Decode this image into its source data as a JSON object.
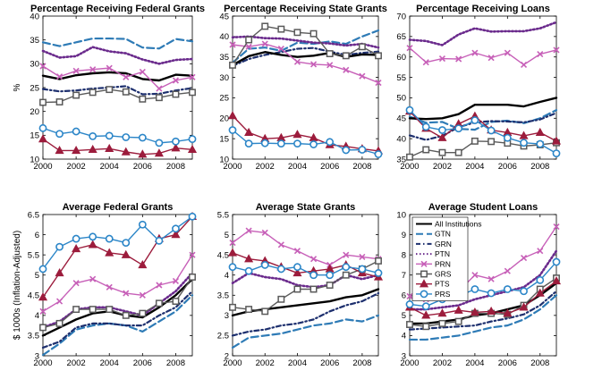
{
  "style": {
    "colors": {
      "ALL": "#000000",
      "GTN": "#2e7bb6",
      "GRN": "#1d2f6e",
      "PTN": "#6a2a8c",
      "PRN": "#c760b8",
      "GRS": "#5a5a5a",
      "PTS": "#9c1c3c",
      "PRS": "#2c86c8"
    }
  },
  "chart_data": [
    {
      "type": "line",
      "title": "Percentage Receiving Federal Grants",
      "xlabel": "",
      "ylabel": "%",
      "xlim": [
        2000,
        2009
      ],
      "ylim": [
        10,
        40
      ],
      "xticks": [
        2000,
        2002,
        2004,
        2006,
        2008
      ],
      "yticks": [
        10,
        15,
        20,
        25,
        30,
        35,
        40
      ],
      "x": [
        2000,
        2001,
        2002,
        2003,
        2004,
        2005,
        2006,
        2007,
        2008,
        2009
      ],
      "series": [
        {
          "name": "All Institutions",
          "key": "ALL",
          "values": [
            27.5,
            26.8,
            27.6,
            28.0,
            28.2,
            28.0,
            26.8,
            26.5,
            27.7,
            27.5
          ]
        },
        {
          "name": "GTN",
          "key": "GTN",
          "values": [
            34.5,
            33.7,
            34.5,
            35.3,
            35.3,
            35.2,
            33.4,
            33.2,
            35.2,
            34.7
          ]
        },
        {
          "name": "GRN",
          "key": "GRN",
          "values": [
            24.7,
            24.2,
            24.4,
            24.8,
            25.0,
            25.3,
            23.6,
            23.7,
            24.4,
            24.9
          ]
        },
        {
          "name": "PTN",
          "key": "PTN",
          "values": [
            32.7,
            31.3,
            31.6,
            33.5,
            32.6,
            32.2,
            30.9,
            30.0,
            30.8,
            31.0
          ]
        },
        {
          "name": "PRN",
          "key": "PRN",
          "values": [
            29.5,
            27.3,
            28.5,
            28.8,
            29.1,
            27.2,
            28.3,
            24.8,
            26.5,
            27.2
          ]
        },
        {
          "name": "GRS",
          "key": "GRS",
          "values": [
            21.9,
            22.0,
            23.4,
            24.0,
            24.6,
            24.1,
            22.6,
            22.9,
            23.6,
            24.0
          ]
        },
        {
          "name": "PTS",
          "key": "PTS",
          "values": [
            14.2,
            11.8,
            11.8,
            12.0,
            12.2,
            11.5,
            11.0,
            11.2,
            12.3,
            12.0
          ]
        },
        {
          "name": "PRS",
          "key": "PRS",
          "values": [
            16.5,
            15.3,
            15.8,
            14.8,
            14.9,
            14.6,
            14.5,
            13.4,
            13.7,
            14.2
          ]
        }
      ]
    },
    {
      "type": "line",
      "title": "Percentage Receiving State Grants",
      "xlabel": "",
      "ylabel": "",
      "xlim": [
        2000,
        2009
      ],
      "ylim": [
        10,
        45
      ],
      "xticks": [
        2000,
        2002,
        2004,
        2006,
        2008
      ],
      "yticks": [
        10,
        15,
        20,
        25,
        30,
        35,
        40,
        45
      ],
      "x": [
        2000,
        2001,
        2002,
        2003,
        2004,
        2005,
        2006,
        2007,
        2008,
        2009
      ],
      "series": [
        {
          "name": "All Institutions",
          "key": "ALL",
          "values": [
            33.0,
            35.2,
            36.2,
            35.5,
            35.0,
            35.3,
            36.0,
            35.0,
            35.6,
            35.5
          ]
        },
        {
          "name": "GTN",
          "key": "GTN",
          "values": [
            33.6,
            37.0,
            37.3,
            36.5,
            38.5,
            38.2,
            38.8,
            38.2,
            40.0,
            41.5
          ]
        },
        {
          "name": "GRN",
          "key": "GRN",
          "values": [
            32.8,
            34.5,
            35.5,
            36.2,
            37.0,
            37.2,
            36.3,
            35.5,
            36.0,
            36.3
          ]
        },
        {
          "name": "PTN",
          "key": "PTN",
          "values": [
            39.8,
            40.0,
            39.6,
            39.5,
            39.0,
            38.5,
            38.3,
            37.8,
            38.2,
            37.3
          ]
        },
        {
          "name": "PRN",
          "key": "PRN",
          "values": [
            38.0,
            37.5,
            38.2,
            37.0,
            33.8,
            33.2,
            33.0,
            31.8,
            30.3,
            28.7
          ]
        },
        {
          "name": "GRS",
          "key": "GRS",
          "values": [
            33.0,
            39.2,
            42.5,
            41.8,
            41.0,
            40.7,
            35.8,
            35.3,
            37.5,
            35.3
          ]
        },
        {
          "name": "PTS",
          "key": "PTS",
          "values": [
            20.6,
            16.5,
            15.0,
            15.2,
            16.0,
            15.2,
            13.5,
            13.1,
            12.5,
            12.0
          ]
        },
        {
          "name": "PRS",
          "key": "PRS",
          "values": [
            17.1,
            13.8,
            13.9,
            13.8,
            13.8,
            13.6,
            14.2,
            12.2,
            12.3,
            11.2
          ]
        }
      ]
    },
    {
      "type": "line",
      "title": "Percentage Receiving Loans",
      "xlabel": "",
      "ylabel": "",
      "xlim": [
        2000,
        2009
      ],
      "ylim": [
        35,
        70
      ],
      "xticks": [
        2000,
        2002,
        2004,
        2006,
        2008
      ],
      "yticks": [
        35,
        40,
        45,
        50,
        55,
        60,
        65,
        70
      ],
      "x": [
        2000,
        2001,
        2002,
        2003,
        2004,
        2005,
        2006,
        2007,
        2008,
        2009
      ],
      "series": [
        {
          "name": "All Institutions",
          "key": "ALL",
          "values": [
            45.0,
            44.8,
            45.0,
            46.0,
            48.3,
            48.3,
            48.3,
            47.9,
            49.0,
            50.0
          ]
        },
        {
          "name": "GTN",
          "key": "GTN",
          "values": [
            45.4,
            43.9,
            44.1,
            42.4,
            42.2,
            44.1,
            44.4,
            43.8,
            45.0,
            47.0
          ]
        },
        {
          "name": "GRN",
          "key": "GRN",
          "values": [
            40.8,
            39.7,
            40.7,
            42.8,
            44.0,
            44.3,
            44.2,
            44.0,
            44.7,
            46.3
          ]
        },
        {
          "name": "PTN",
          "key": "PTN",
          "values": [
            64.2,
            63.9,
            62.9,
            65.5,
            67.0,
            66.2,
            66.3,
            66.3,
            67.0,
            68.5
          ]
        },
        {
          "name": "PRN",
          "key": "PRN",
          "values": [
            62.2,
            58.7,
            59.6,
            59.5,
            61.0,
            59.8,
            61.0,
            58.1,
            60.7,
            61.7
          ]
        },
        {
          "name": "GRS",
          "key": "GRS",
          "values": [
            35.5,
            37.3,
            36.6,
            36.6,
            39.4,
            39.3,
            38.9,
            38.2,
            38.5,
            39.0
          ]
        },
        {
          "name": "PTS",
          "key": "PTS",
          "values": [
            46.7,
            42.5,
            40.2,
            43.6,
            45.5,
            42.1,
            41.5,
            40.7,
            41.5,
            39.4
          ]
        },
        {
          "name": "PRS",
          "key": "PRS",
          "values": [
            47.0,
            42.9,
            42.1,
            42.5,
            44.5,
            42.0,
            40.2,
            39.0,
            38.7,
            36.4
          ]
        }
      ]
    },
    {
      "type": "line",
      "title": "Average Federal Grants",
      "xlabel": "",
      "ylabel": "$ 1000s (Inflation-Adjusted)",
      "xlim": [
        2000,
        2009
      ],
      "ylim": [
        3,
        6.5
      ],
      "xticks": [
        2000,
        2002,
        2004,
        2006,
        2008
      ],
      "yticks": [
        3,
        3.5,
        4,
        4.5,
        5,
        5.5,
        6,
        6.5
      ],
      "x": [
        2000,
        2001,
        2002,
        2003,
        2004,
        2005,
        2006,
        2007,
        2008,
        2009
      ],
      "series": [
        {
          "name": "All Institutions",
          "key": "ALL",
          "values": [
            3.5,
            3.7,
            3.9,
            4.05,
            4.1,
            4.0,
            3.95,
            4.2,
            4.5,
            4.9
          ]
        },
        {
          "name": "GTN",
          "key": "GTN",
          "values": [
            3.02,
            3.3,
            3.65,
            3.75,
            3.8,
            3.75,
            3.6,
            3.85,
            4.1,
            4.5
          ]
        },
        {
          "name": "GRN",
          "key": "GRN",
          "values": [
            3.2,
            3.35,
            3.7,
            3.8,
            3.8,
            3.75,
            3.75,
            4.0,
            4.2,
            4.6
          ]
        },
        {
          "name": "PTN",
          "key": "PTN",
          "values": [
            3.7,
            3.85,
            4.15,
            4.2,
            4.2,
            4.1,
            4.0,
            4.3,
            4.6,
            5.05
          ]
        },
        {
          "name": "PRN",
          "key": "PRN",
          "values": [
            4.1,
            4.35,
            4.8,
            4.9,
            4.7,
            4.55,
            4.5,
            4.75,
            4.85,
            5.5
          ]
        },
        {
          "name": "GRS",
          "key": "GRS",
          "values": [
            3.7,
            3.8,
            4.15,
            4.15,
            4.15,
            4.0,
            4.05,
            4.3,
            4.35,
            4.95
          ]
        },
        {
          "name": "PTS",
          "key": "PTS",
          "values": [
            4.45,
            5.05,
            5.65,
            5.75,
            5.55,
            5.5,
            5.25,
            5.9,
            6.0,
            6.45
          ]
        },
        {
          "name": "PRS",
          "key": "PRS",
          "values": [
            5.15,
            5.7,
            5.9,
            5.95,
            5.9,
            5.8,
            6.25,
            5.85,
            6.15,
            6.45
          ]
        }
      ]
    },
    {
      "type": "line",
      "title": "Average State Grants",
      "xlabel": "",
      "ylabel": "",
      "xlim": [
        2000,
        2009
      ],
      "ylim": [
        2,
        5.5
      ],
      "xticks": [
        2000,
        2002,
        2004,
        2006,
        2008
      ],
      "yticks": [
        2,
        2.5,
        3,
        3.5,
        4,
        4.5,
        5,
        5.5
      ],
      "x": [
        2000,
        2001,
        2002,
        2003,
        2004,
        2005,
        2006,
        2007,
        2008,
        2009
      ],
      "series": [
        {
          "name": "All Institutions",
          "key": "ALL",
          "values": [
            3.0,
            3.1,
            3.15,
            3.2,
            3.25,
            3.3,
            3.35,
            3.45,
            3.5,
            3.65
          ]
        },
        {
          "name": "GTN",
          "key": "GTN",
          "values": [
            2.2,
            2.45,
            2.5,
            2.55,
            2.65,
            2.75,
            2.8,
            2.9,
            2.85,
            3.0
          ]
        },
        {
          "name": "GRN",
          "key": "GRN",
          "values": [
            2.5,
            2.6,
            2.65,
            2.75,
            2.8,
            2.9,
            3.1,
            3.25,
            3.35,
            3.55
          ]
        },
        {
          "name": "PTN",
          "key": "PTN",
          "values": [
            3.8,
            4.05,
            3.95,
            3.9,
            3.75,
            3.7,
            3.75,
            4.0,
            3.9,
            4.0
          ]
        },
        {
          "name": "PRN",
          "key": "PRN",
          "values": [
            4.8,
            5.1,
            5.05,
            4.75,
            4.6,
            4.4,
            4.25,
            4.5,
            4.45,
            4.4
          ]
        },
        {
          "name": "GRS",
          "key": "GRS",
          "values": [
            3.2,
            3.15,
            3.1,
            3.4,
            3.65,
            3.65,
            3.75,
            4.0,
            4.15,
            4.35
          ]
        },
        {
          "name": "PTS",
          "key": "PTS",
          "values": [
            4.55,
            4.4,
            4.35,
            4.2,
            4.05,
            4.1,
            4.15,
            4.25,
            4.05,
            3.95
          ]
        },
        {
          "name": "PRS",
          "key": "PRS",
          "values": [
            4.2,
            4.1,
            4.25,
            4.15,
            4.2,
            4.0,
            4.0,
            4.2,
            4.15,
            4.05
          ]
        }
      ]
    },
    {
      "type": "line",
      "title": "Average Student Loans",
      "xlabel": "",
      "ylabel": "",
      "xlim": [
        2000,
        2009
      ],
      "ylim": [
        3,
        10
      ],
      "xticks": [
        2000,
        2002,
        2004,
        2006,
        2008
      ],
      "yticks": [
        3,
        4,
        5,
        6,
        7,
        8,
        9,
        10
      ],
      "x": [
        2000,
        2001,
        2002,
        2003,
        2004,
        2005,
        2006,
        2007,
        2008,
        2009
      ],
      "series": [
        {
          "name": "All Institutions",
          "key": "ALL",
          "values": [
            4.6,
            4.6,
            4.7,
            4.8,
            5.0,
            5.1,
            5.3,
            5.5,
            6.0,
            6.6
          ]
        },
        {
          "name": "GTN",
          "key": "GTN",
          "values": [
            3.8,
            3.8,
            3.9,
            4.0,
            4.2,
            4.4,
            4.5,
            4.8,
            5.3,
            6.0
          ]
        },
        {
          "name": "GRN",
          "key": "GRN",
          "values": [
            4.3,
            4.35,
            4.4,
            4.45,
            4.5,
            4.7,
            4.85,
            5.05,
            5.5,
            6.2
          ]
        },
        {
          "name": "PTN",
          "key": "PTN",
          "values": [
            5.3,
            5.3,
            5.4,
            5.5,
            5.8,
            6.0,
            6.2,
            6.4,
            7.0,
            8.2
          ]
        },
        {
          "name": "PRN",
          "key": "PRN",
          "values": [
            5.95,
            5.8,
            6.15,
            6.2,
            7.0,
            6.8,
            7.2,
            7.85,
            8.2,
            9.4
          ]
        },
        {
          "name": "GRS",
          "key": "GRS",
          "values": [
            4.55,
            4.45,
            4.6,
            4.7,
            5.1,
            5.1,
            5.05,
            5.5,
            6.3,
            6.85
          ]
        },
        {
          "name": "PTS",
          "key": "PTS",
          "values": [
            5.4,
            5.0,
            5.1,
            5.25,
            5.15,
            5.2,
            5.1,
            5.4,
            6.1,
            6.7
          ]
        },
        {
          "name": "PRS",
          "key": "PRS",
          "values": [
            5.55,
            5.45,
            5.8,
            5.95,
            6.3,
            6.1,
            6.3,
            6.2,
            6.75,
            7.65
          ]
        }
      ]
    }
  ],
  "legend": {
    "placement": "top-left of Average Student Loans panel",
    "entries": [
      {
        "key": "ALL",
        "label": "All Institutions"
      },
      {
        "key": "GTN",
        "label": "GTN"
      },
      {
        "key": "GRN",
        "label": "GRN"
      },
      {
        "key": "PTN",
        "label": "PTN"
      },
      {
        "key": "PRN",
        "label": "PRN"
      },
      {
        "key": "GRS",
        "label": "GRS"
      },
      {
        "key": "PTS",
        "label": "PTS"
      },
      {
        "key": "PRS",
        "label": "PRS"
      }
    ]
  }
}
